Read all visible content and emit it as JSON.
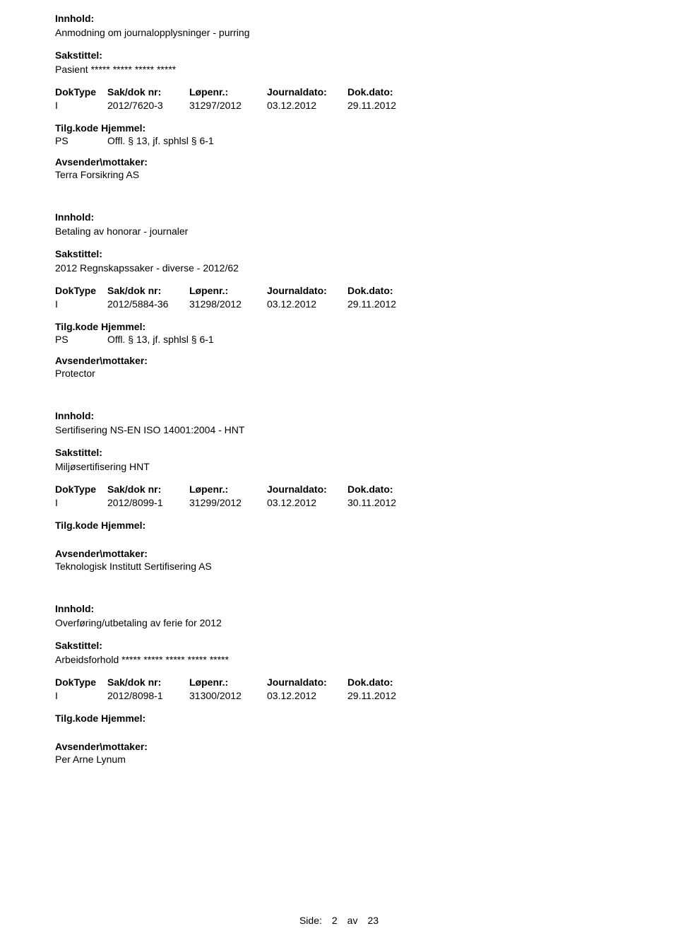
{
  "labels": {
    "innhold": "Innhold:",
    "sakstittel": "Sakstittel:",
    "doktype": "DokType",
    "sakdok": "Sak/dok nr:",
    "lopenr": "Løpenr.:",
    "journaldato": "Journaldato:",
    "dokdato": "Dok.dato:",
    "tilgkode": "Tilg.kode",
    "hjemmel": "Hjemmel:",
    "avsender": "Avsender\\mottaker:"
  },
  "records": [
    {
      "innhold": "Anmodning om journalopplysninger - purring",
      "sakstittel": "Pasient ***** ***** ***** *****",
      "doktype": "I",
      "sakdok": "2012/7620-3",
      "lopenr": "31297/2012",
      "journaldato": "03.12.2012",
      "dokdato": "29.11.2012",
      "tilgkode": "PS",
      "hjemmel": "Offl. § 13, jf. sphlsl § 6-1",
      "avsender": "Terra Forsikring AS",
      "gap_after_tilg": false
    },
    {
      "innhold": "Betaling av honorar - journaler",
      "sakstittel": "2012 Regnskapssaker - diverse - 2012/62",
      "doktype": "I",
      "sakdok": "2012/5884-36",
      "lopenr": "31298/2012",
      "journaldato": "03.12.2012",
      "dokdato": "29.11.2012",
      "tilgkode": "PS",
      "hjemmel": "Offl. § 13, jf. sphlsl § 6-1",
      "avsender": "Protector",
      "gap_after_tilg": false
    },
    {
      "innhold": "Sertifisering NS-EN ISO 14001:2004 - HNT",
      "sakstittel": "Miljøsertifisering HNT",
      "doktype": "I",
      "sakdok": "2012/8099-1",
      "lopenr": "31299/2012",
      "journaldato": "03.12.2012",
      "dokdato": "30.11.2012",
      "tilgkode": "",
      "hjemmel": "",
      "avsender": "Teknologisk Institutt Sertifisering AS",
      "gap_after_tilg": true
    },
    {
      "innhold": "Overføring/utbetaling av ferie for 2012",
      "sakstittel": "Arbeidsforhold ***** ***** ***** ***** *****",
      "doktype": "I",
      "sakdok": "2012/8098-1",
      "lopenr": "31300/2012",
      "journaldato": "03.12.2012",
      "dokdato": "29.11.2012",
      "tilgkode": "",
      "hjemmel": "",
      "avsender": "Per Arne Lynum",
      "gap_after_tilg": true
    }
  ],
  "footer": {
    "side": "Side:",
    "page": "2",
    "av": "av",
    "total": "23"
  }
}
